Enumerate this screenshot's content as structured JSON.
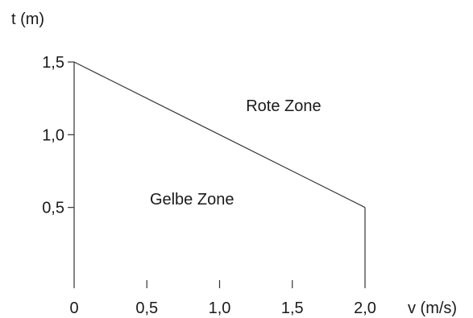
{
  "chart_data": {
    "type": "area",
    "xlabel": "v (m/s)",
    "ylabel": "t (m)",
    "xlim": [
      0,
      2.0
    ],
    "ylim": [
      0,
      1.5
    ],
    "x_ticks": [
      {
        "value": 0,
        "label": "0"
      },
      {
        "value": 0.5,
        "label": "0,5"
      },
      {
        "value": 1.0,
        "label": "1,0"
      },
      {
        "value": 1.5,
        "label": "1,5"
      },
      {
        "value": 2.0,
        "label": "2,0"
      }
    ],
    "y_ticks": [
      {
        "value": 0.5,
        "label": "0,5"
      },
      {
        "value": 1.0,
        "label": "1,0"
      },
      {
        "value": 1.5,
        "label": "1,5"
      }
    ],
    "boundary": {
      "x": [
        0,
        2.0
      ],
      "y": [
        1.5,
        0.5
      ]
    },
    "zones": [
      {
        "label": "Rote Zone",
        "x": 1.44,
        "y": 1.2
      },
      {
        "label": "Gelbe Zone",
        "x": 0.81,
        "y": 0.56
      }
    ],
    "grid": false,
    "colors": {
      "line": "#333333",
      "text": "#1a1a1a"
    }
  }
}
